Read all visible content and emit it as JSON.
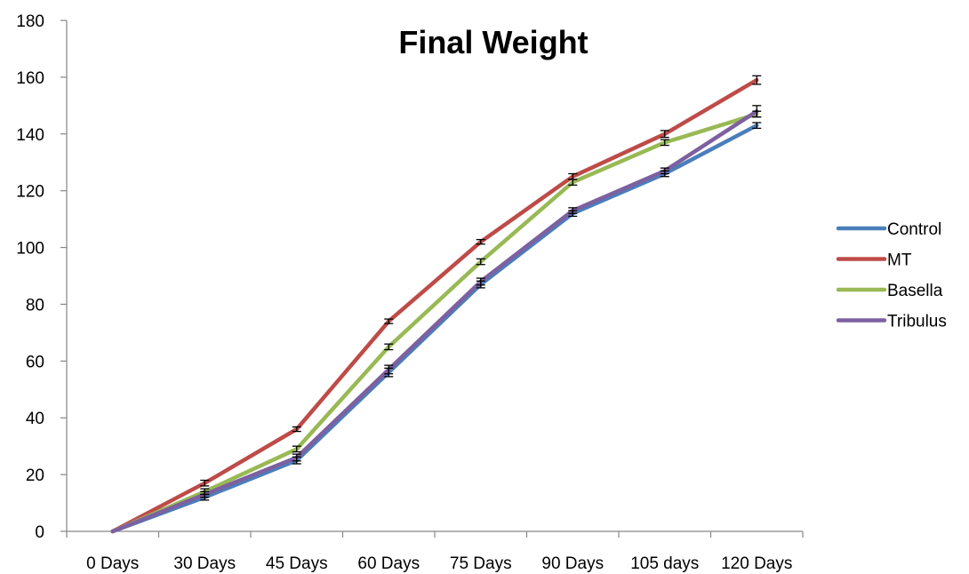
{
  "chart_data": {
    "type": "line",
    "title": "Final Weight",
    "xlabel": "",
    "ylabel": "",
    "categories": [
      "0 Days",
      "30 Days",
      "45 Days",
      "60 Days",
      "75 Days",
      "90 Days",
      "105 days",
      "120 Days"
    ],
    "ylim": [
      0,
      180
    ],
    "yticks": [
      0,
      20,
      40,
      60,
      80,
      100,
      120,
      140,
      160,
      180
    ],
    "grid": false,
    "legend_position": "right",
    "series": [
      {
        "name": "Control",
        "color": "#4a7ebb",
        "values": [
          0,
          12,
          25,
          56,
          87,
          112,
          126,
          143
        ],
        "errors": [
          0,
          1,
          1.2,
          1.5,
          1.2,
          1,
          1,
          1
        ]
      },
      {
        "name": "MT",
        "color": "#be4b48",
        "values": [
          0,
          17,
          36,
          74,
          102,
          125,
          140,
          159
        ],
        "errors": [
          0,
          1,
          0.8,
          0.8,
          0.8,
          1,
          1.2,
          1.5
        ]
      },
      {
        "name": "Basella",
        "color": "#98b954",
        "values": [
          0,
          14,
          29,
          65,
          95,
          123,
          137,
          147
        ],
        "errors": [
          0,
          1,
          1,
          1,
          1,
          1,
          1,
          1
        ]
      },
      {
        "name": "Tribulus",
        "color": "#7d60a0",
        "values": [
          0,
          13,
          26,
          57,
          88,
          113,
          127,
          148
        ],
        "errors": [
          0,
          1,
          1.2,
          1.5,
          1.2,
          1,
          1,
          2
        ]
      }
    ]
  }
}
